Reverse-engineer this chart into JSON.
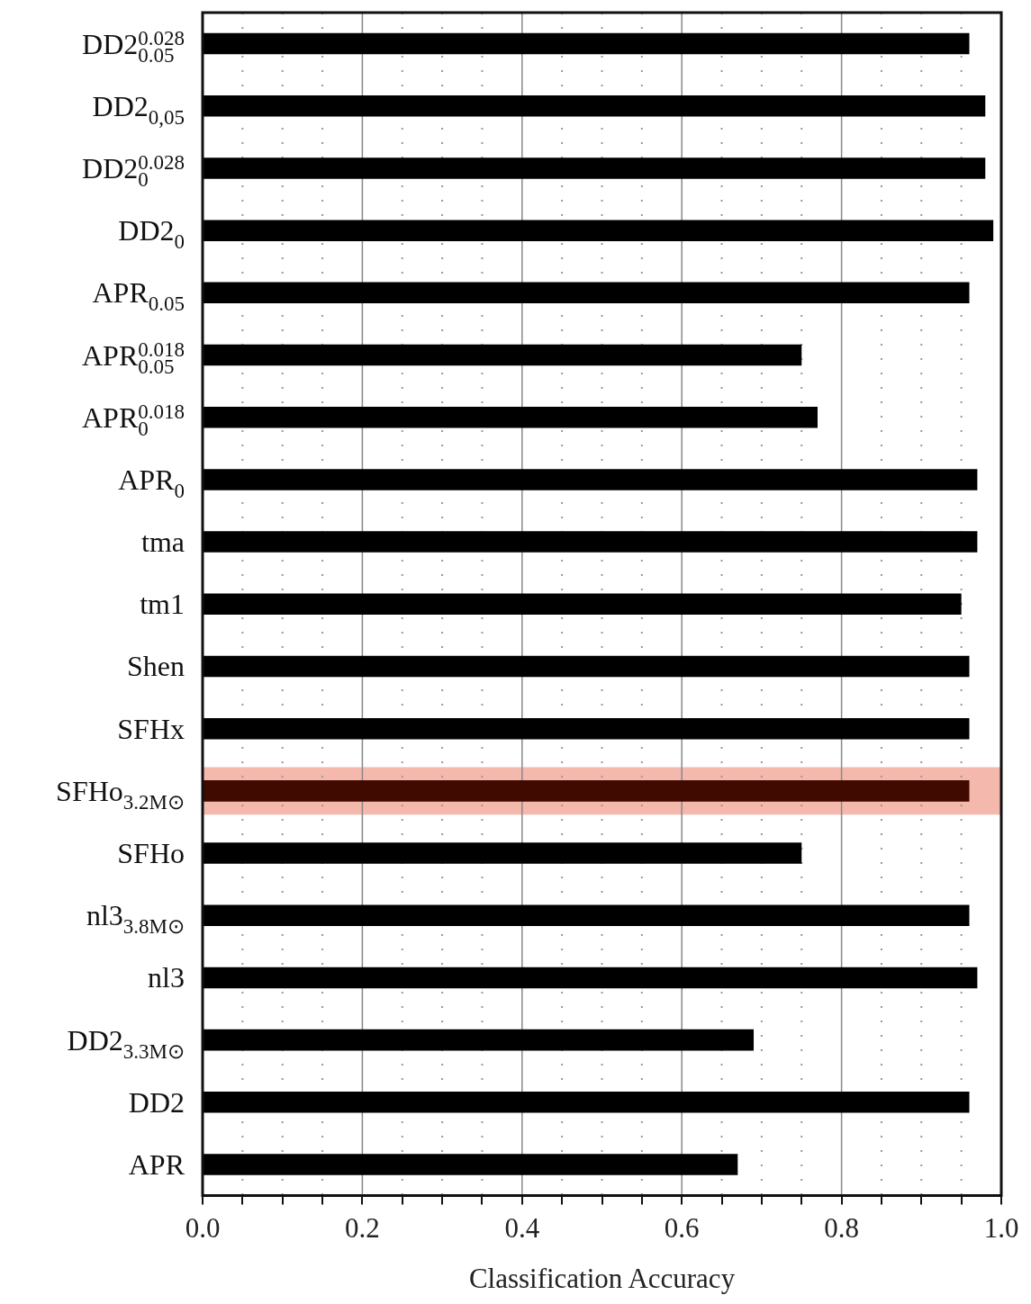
{
  "chart_data": {
    "type": "bar",
    "orientation": "horizontal",
    "xlabel": "Classification Accuracy",
    "categories": [
      "DD2$^{0.028}$$_{0.05}$",
      "DD2$_{0,05}$",
      "DD2$^{0.028}$$_{0}$",
      "DD2$_{0}$",
      "APR$_{0.05}$",
      "APR$^{0.018}$$_{0.05}$",
      "APR$^{0.018}$$_{0}$",
      "APR$_{0}$",
      "tma",
      "tm1",
      "Shen",
      "SFHx",
      "SFHo$_{3.2M⊙}$",
      "SFHo",
      "nl3$_{3.8M⊙}$",
      "nl3",
      "DD2$_{3.3M⊙}$",
      "DD2",
      "APR"
    ],
    "values": [
      0.96,
      0.98,
      0.98,
      0.99,
      0.96,
      0.75,
      0.77,
      0.97,
      0.97,
      0.95,
      0.96,
      0.96,
      0.96,
      0.75,
      0.96,
      0.97,
      0.69,
      0.96,
      0.67
    ],
    "colors": [
      "#000000",
      "#000000",
      "#000000",
      "#000000",
      "#000000",
      "#000000",
      "#000000",
      "#000000",
      "#000000",
      "#000000",
      "#000000",
      "#000000",
      "#400a00",
      "#000000",
      "#000000",
      "#000000",
      "#000000",
      "#000000",
      "#000000"
    ],
    "xlim": [
      0,
      1
    ],
    "xticks": [
      {
        "value": 0,
        "label": "0.0"
      },
      {
        "value": 0.05,
        "label": null
      },
      {
        "value": 0.1,
        "label": null
      },
      {
        "value": 0.15,
        "label": null
      },
      0.2,
      {
        "value": 0.25,
        "label": null
      },
      {
        "value": 0.3,
        "label": null
      },
      {
        "value": 0.35,
        "label": null
      },
      0.4,
      {
        "value": 0.45,
        "label": null
      },
      {
        "value": 0.5,
        "label": null
      },
      {
        "value": 0.55,
        "label": null
      },
      0.6,
      {
        "value": 0.65,
        "label": null
      },
      {
        "value": 0.7,
        "label": null
      },
      {
        "value": 0.75,
        "label": null
      },
      0.8,
      {
        "value": 0.85,
        "label": null
      },
      {
        "value": 0.9,
        "label": null
      },
      {
        "value": 0.95,
        "label": null
      },
      {
        "value": 1,
        "label": "1.0"
      }
    ],
    "bands": [
      {
        "axis": "y",
        "from": "SFHo$_{3.2M⊙}$",
        "to": "SFHo$_{3.2M⊙}$",
        "color": "#f4b8ad"
      }
    ],
    "grid": "x",
    "legend": false
  }
}
